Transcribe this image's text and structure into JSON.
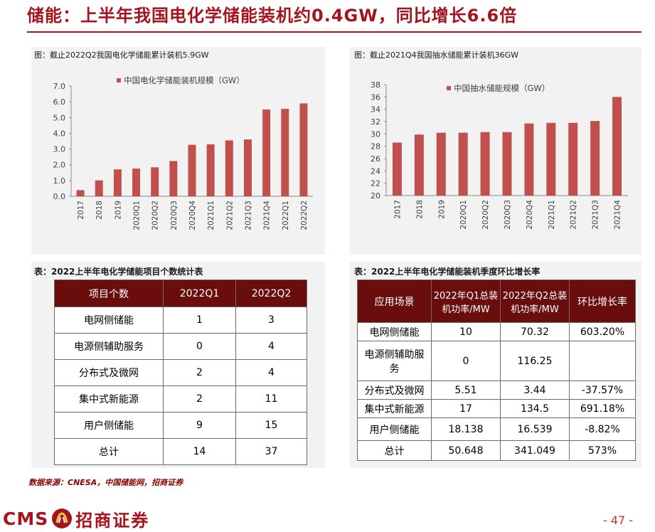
{
  "title": "储能：上半年我国电化学储能装机约0.4GW，同比增长6.6倍",
  "accent_color": "#a5131d",
  "bar_color": "#c0504d",
  "left_chart": {
    "caption": "图：截止2022Q2我国电化学储能累计装机5.9GW"
  },
  "right_chart": {
    "caption": "图：截止2021Q4我国抽水储能累计装机36GW"
  },
  "chart_data": [
    {
      "type": "bar",
      "title": "",
      "legend": "中国电化学储能装机规模（GW）",
      "legend_position": "top",
      "categories": [
        "2017",
        "2018",
        "2019",
        "2020Q1",
        "2020Q2",
        "2020Q3",
        "2020Q4",
        "2021Q1",
        "2021Q2",
        "2021Q3",
        "2021Q4",
        "2022Q1",
        "2022Q2"
      ],
      "values": [
        0.39,
        1.01,
        1.71,
        1.76,
        1.84,
        2.24,
        3.27,
        3.3,
        3.55,
        3.61,
        5.51,
        5.55,
        5.9
      ],
      "ylim": [
        0,
        7
      ],
      "yticks": [
        "0.0",
        "1.0",
        "2.0",
        "3.0",
        "4.0",
        "5.0",
        "6.0",
        "7.0"
      ],
      "grid": false
    },
    {
      "type": "bar",
      "title": "",
      "legend": "中国抽水储能规模（GW）",
      "legend_position": "top",
      "categories": [
        "2017",
        "2018",
        "2019",
        "2020Q1",
        "2020Q2",
        "2020Q3",
        "2020Q4",
        "2021Q1",
        "2021Q2",
        "2021Q3",
        "2021Q4"
      ],
      "values": [
        28.6,
        29.9,
        30.2,
        30.2,
        30.3,
        30.3,
        31.7,
        31.8,
        31.8,
        32.1,
        36.0
      ],
      "ylim": [
        20,
        38
      ],
      "yticks": [
        "20",
        "22",
        "24",
        "26",
        "28",
        "30",
        "32",
        "34",
        "36",
        "38"
      ],
      "grid": false
    }
  ],
  "table1": {
    "caption": "表：2022上半年电化学储能项目个数统计表",
    "headers": [
      "项目个数",
      "2022Q1",
      "2022Q2"
    ],
    "rows": [
      [
        "电网侧储能",
        "1",
        "3"
      ],
      [
        "电源侧辅助服务",
        "0",
        "4"
      ],
      [
        "分布式及微网",
        "2",
        "4"
      ],
      [
        "集中式新能源",
        "2",
        "11"
      ],
      [
        "用户侧储能",
        "9",
        "15"
      ],
      [
        "总计",
        "14",
        "37"
      ]
    ]
  },
  "table2": {
    "caption": "表：2022上半年电化学储能装机季度环比增长率",
    "headers": [
      "应用场景",
      "2022年Q1总装机功率/MW",
      "2022年Q2总装机功率/MW",
      "环比增长率"
    ],
    "rows": [
      [
        "电网侧储能",
        "10",
        "70.32",
        "603.20%"
      ],
      [
        "电源侧辅助服务",
        "0",
        "116.25",
        ""
      ],
      [
        "分布式及微网",
        "5.51",
        "3.44",
        "-37.57%"
      ],
      [
        "集中式新能源",
        "17",
        "134.5",
        "691.18%"
      ],
      [
        "用户侧储能",
        "18.138",
        "16.539",
        "-8.82%"
      ],
      [
        "总计",
        "50.648",
        "341.049",
        "573%"
      ]
    ]
  },
  "source": "数据来源：CNESA，中国储能网，招商证券",
  "footer": {
    "logo_text": "CMS",
    "logo_badge_icon": "cms-badge-icon",
    "company": "招商证券",
    "page": "- 47 -"
  }
}
